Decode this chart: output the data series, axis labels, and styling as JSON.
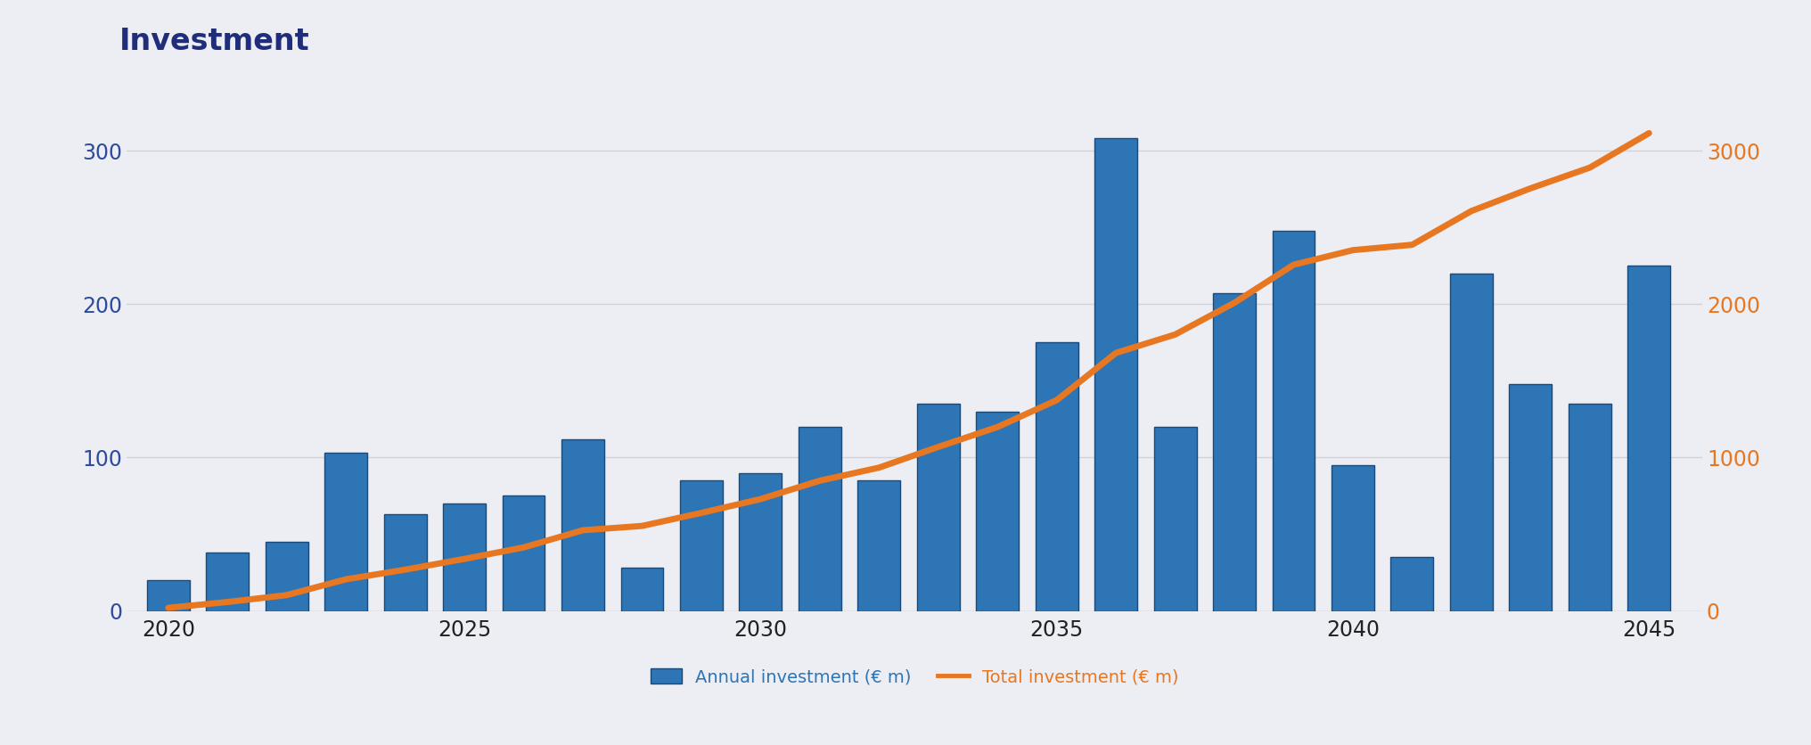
{
  "years": [
    2020,
    2021,
    2022,
    2023,
    2024,
    2025,
    2026,
    2027,
    2028,
    2029,
    2030,
    2031,
    2032,
    2033,
    2034,
    2035,
    2036,
    2037,
    2038,
    2039,
    2040,
    2041,
    2042,
    2043,
    2044,
    2045
  ],
  "annual_investment": [
    20,
    38,
    45,
    103,
    63,
    70,
    75,
    112,
    28,
    85,
    90,
    120,
    85,
    135,
    130,
    175,
    308,
    120,
    207,
    248,
    95,
    35,
    220,
    148,
    135,
    225
  ],
  "total_investment": [
    20,
    58,
    103,
    206,
    269,
    339,
    414,
    526,
    554,
    639,
    729,
    849,
    934,
    1069,
    1199,
    1374,
    1682,
    1802,
    2009,
    2257,
    2352,
    2387,
    2607,
    2755,
    2890,
    3115
  ],
  "bar_color": "#2E75B6",
  "bar_edge_color": "#1a4a7a",
  "line_color": "#E87722",
  "title": "Investment",
  "title_color": "#1F2D7B",
  "title_fontsize": 24,
  "left_tick_color": "#2E4B9E",
  "right_tick_color": "#E87722",
  "ylim_left": [
    0,
    340
  ],
  "ylim_right": [
    0,
    3400
  ],
  "left_yticks": [
    0,
    100,
    200,
    300
  ],
  "right_yticks": [
    0,
    1000,
    2000,
    3000
  ],
  "background_color": "#ECEEF3",
  "grid_color": "#D0D3DA",
  "legend_annual_label": "Annual investment (€ m)",
  "legend_total_label": "Total investment (€ m)",
  "legend_annual_color": "#2E75B6",
  "legend_total_color": "#E87722",
  "legend_fontsize": 14,
  "tick_label_fontsize": 17,
  "line_width": 5,
  "bar_width": 0.72,
  "xlim_left": 2019.3,
  "xlim_right": 2045.9,
  "xticks": [
    2020,
    2025,
    2030,
    2035,
    2040,
    2045
  ],
  "bottom_line_color": "#AAAAAA"
}
